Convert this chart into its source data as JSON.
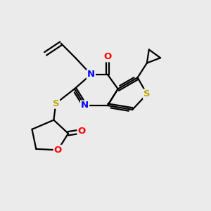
{
  "bg_color": "#ebebeb",
  "atom_colors": {
    "N": "#0000ff",
    "O": "#ff0000",
    "S": "#bbaa00",
    "C": "#000000"
  },
  "bond_color": "#000000",
  "figsize": [
    3.0,
    3.0
  ],
  "dpi": 100
}
